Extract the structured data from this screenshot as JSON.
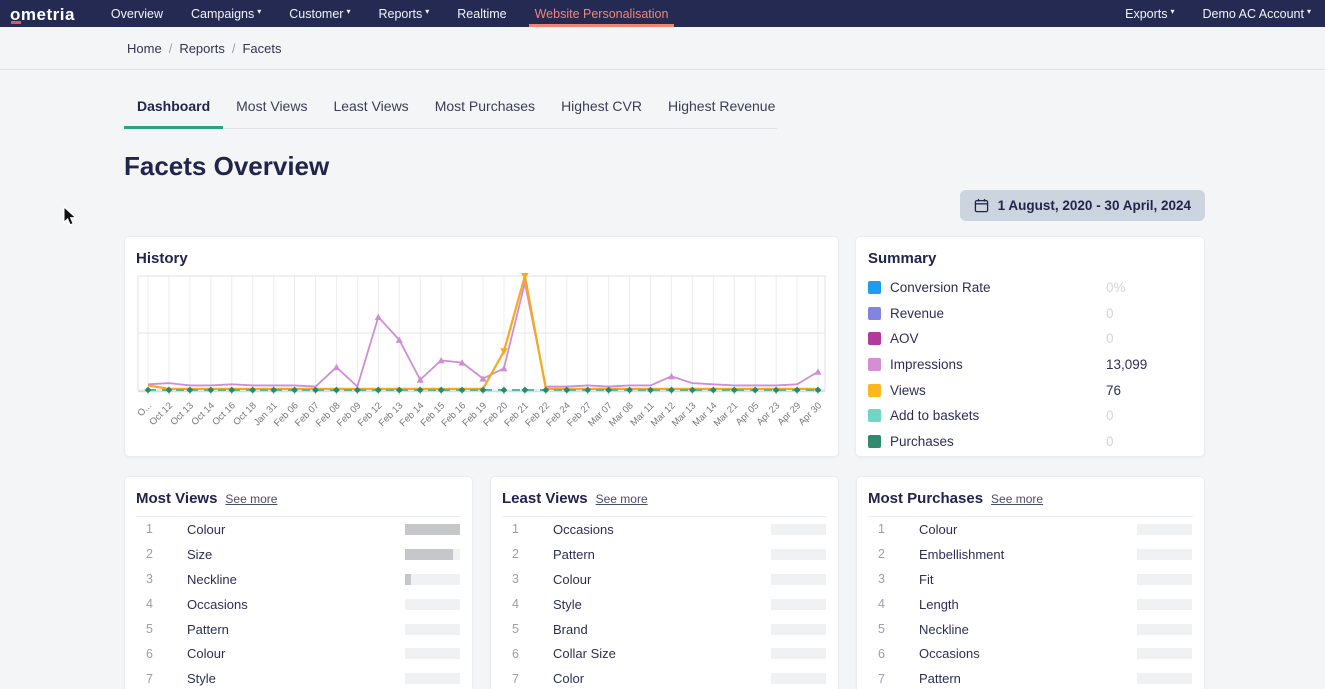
{
  "nav": {
    "logo": "ometria",
    "items": [
      {
        "label": "Overview",
        "dropdown": false
      },
      {
        "label": "Campaigns",
        "dropdown": true
      },
      {
        "label": "Customer",
        "dropdown": true
      },
      {
        "label": "Reports",
        "dropdown": true
      },
      {
        "label": "Realtime",
        "dropdown": false
      },
      {
        "label": "Website Personalisation",
        "dropdown": false
      }
    ],
    "right_items": [
      {
        "label": "Exports",
        "dropdown": true
      },
      {
        "label": "Demo AC Account",
        "dropdown": true
      }
    ],
    "active_item": "Website Personalisation",
    "bg_color": "#252a52",
    "active_color": "#f08576"
  },
  "breadcrumb": {
    "items": [
      "Home",
      "Reports",
      "Facets"
    ],
    "separator": "/"
  },
  "tabs": [
    {
      "label": "Dashboard",
      "active": true
    },
    {
      "label": "Most Views",
      "active": false
    },
    {
      "label": "Least Views",
      "active": false
    },
    {
      "label": "Most Purchases",
      "active": false
    },
    {
      "label": "Highest CVR",
      "active": false
    },
    {
      "label": "Highest Revenue",
      "active": false
    }
  ],
  "active_tab_underline_color": "#2ba37e",
  "page_title": "Facets Overview",
  "date_range": {
    "label": "1 August, 2020 - 30 April, 2024",
    "icon": "calendar-icon"
  },
  "history": {
    "title": "History"
  },
  "chart_data": {
    "type": "line",
    "title": "History",
    "xlabel": "",
    "ylabel": "",
    "ylim": [
      0,
      100
    ],
    "grid": true,
    "legend_position": "none",
    "categories": [
      "O...",
      "Oct 12",
      "Oct 13",
      "Oct 14",
      "Oct 16",
      "Oct 18",
      "Jan 31",
      "Feb 06",
      "Feb 07",
      "Feb 08",
      "Feb 09",
      "Feb 12",
      "Feb 13",
      "Feb 14",
      "Feb 15",
      "Feb 16",
      "Feb 19",
      "Feb 20",
      "Feb 21",
      "Feb 22",
      "Feb 24",
      "Feb 27",
      "Mar 07",
      "Mar 08",
      "Mar 11",
      "Mar 12",
      "Mar 13",
      "Mar 14",
      "Mar 21",
      "Apr 05",
      "Apr 23",
      "Apr 29",
      "Apr 30"
    ],
    "series": [
      {
        "name": "Impressions",
        "color": "#cf8ed3",
        "marker": "triangle-up",
        "values": [
          5,
          6,
          4,
          4,
          5,
          4,
          4,
          4,
          3,
          20,
          3,
          64,
          44,
          9,
          26,
          24,
          10,
          19,
          94,
          3,
          3,
          4,
          3,
          4,
          4,
          12,
          6,
          5,
          4,
          4,
          4,
          5,
          16
        ]
      },
      {
        "name": "Views",
        "color": "#f7a81f",
        "marker": "triangle-down",
        "values": [
          4,
          1,
          1,
          1,
          1,
          1,
          1,
          1,
          1,
          1,
          1,
          1,
          1,
          1,
          1,
          1,
          1,
          34,
          100,
          1,
          1,
          1,
          1,
          1,
          1,
          1,
          1,
          1,
          1,
          1,
          1,
          1,
          1
        ]
      },
      {
        "name": "Add to baskets",
        "color": "#3fc1ad",
        "marker": "none",
        "values": [
          0,
          0,
          0,
          0,
          0,
          0,
          0,
          0,
          0,
          0,
          0,
          0,
          0,
          0,
          0,
          0,
          0,
          0,
          0,
          0,
          0,
          0,
          0,
          0,
          0,
          0,
          0,
          0,
          0,
          0,
          0,
          0,
          0
        ]
      },
      {
        "name": "Purchases",
        "color": "#268b68",
        "marker": "diamond",
        "values": [
          0,
          0,
          0,
          0,
          0,
          0,
          0,
          0,
          0,
          0,
          0,
          0,
          0,
          0,
          0,
          0,
          0,
          0,
          0,
          0,
          0,
          0,
          0,
          0,
          0,
          0,
          0,
          0,
          0,
          0,
          0,
          0,
          0
        ]
      }
    ]
  },
  "summary": {
    "title": "Summary",
    "rows": [
      {
        "label": "Conversion Rate",
        "value": "0%",
        "color": "#1f9ced",
        "muted": true
      },
      {
        "label": "Revenue",
        "value": "0",
        "color": "#8083e0",
        "muted": true
      },
      {
        "label": "AOV",
        "value": "0",
        "color": "#b13a9c",
        "muted": true
      },
      {
        "label": "Impressions",
        "value": "13,099",
        "color": "#d48fd2",
        "muted": false
      },
      {
        "label": "Views",
        "value": "76",
        "color": "#fbb81c",
        "muted": false
      },
      {
        "label": "Add to baskets",
        "value": "0",
        "color": "#6fd6c3",
        "muted": true
      },
      {
        "label": "Purchases",
        "value": "0",
        "color": "#2e8b72",
        "muted": true
      }
    ]
  },
  "cards": [
    {
      "title": "Most Views",
      "see_more": "See more",
      "rows": [
        {
          "rank": "1",
          "label": "Colour",
          "fill_pct": 100
        },
        {
          "rank": "2",
          "label": "Size",
          "fill_pct": 88
        },
        {
          "rank": "3",
          "label": "Neckline",
          "fill_pct": 10
        },
        {
          "rank": "4",
          "label": "Occasions",
          "fill_pct": 0
        },
        {
          "rank": "5",
          "label": "Pattern",
          "fill_pct": 0
        },
        {
          "rank": "6",
          "label": "Colour",
          "fill_pct": 0
        },
        {
          "rank": "7",
          "label": "Style",
          "fill_pct": 0
        }
      ]
    },
    {
      "title": "Least Views",
      "see_more": "See more",
      "rows": [
        {
          "rank": "1",
          "label": "Occasions",
          "fill_pct": 0
        },
        {
          "rank": "2",
          "label": "Pattern",
          "fill_pct": 0
        },
        {
          "rank": "3",
          "label": "Colour",
          "fill_pct": 0
        },
        {
          "rank": "4",
          "label": "Style",
          "fill_pct": 0
        },
        {
          "rank": "5",
          "label": "Brand",
          "fill_pct": 0
        },
        {
          "rank": "6",
          "label": "Collar Size",
          "fill_pct": 0
        },
        {
          "rank": "7",
          "label": "Color",
          "fill_pct": 0
        }
      ]
    },
    {
      "title": "Most Purchases",
      "see_more": "See more",
      "rows": [
        {
          "rank": "1",
          "label": "Colour",
          "fill_pct": 0
        },
        {
          "rank": "2",
          "label": "Embellishment",
          "fill_pct": 0
        },
        {
          "rank": "3",
          "label": "Fit",
          "fill_pct": 0
        },
        {
          "rank": "4",
          "label": "Length",
          "fill_pct": 0
        },
        {
          "rank": "5",
          "label": "Neckline",
          "fill_pct": 0
        },
        {
          "rank": "6",
          "label": "Occasions",
          "fill_pct": 0
        },
        {
          "rank": "7",
          "label": "Pattern",
          "fill_pct": 0
        }
      ]
    }
  ]
}
